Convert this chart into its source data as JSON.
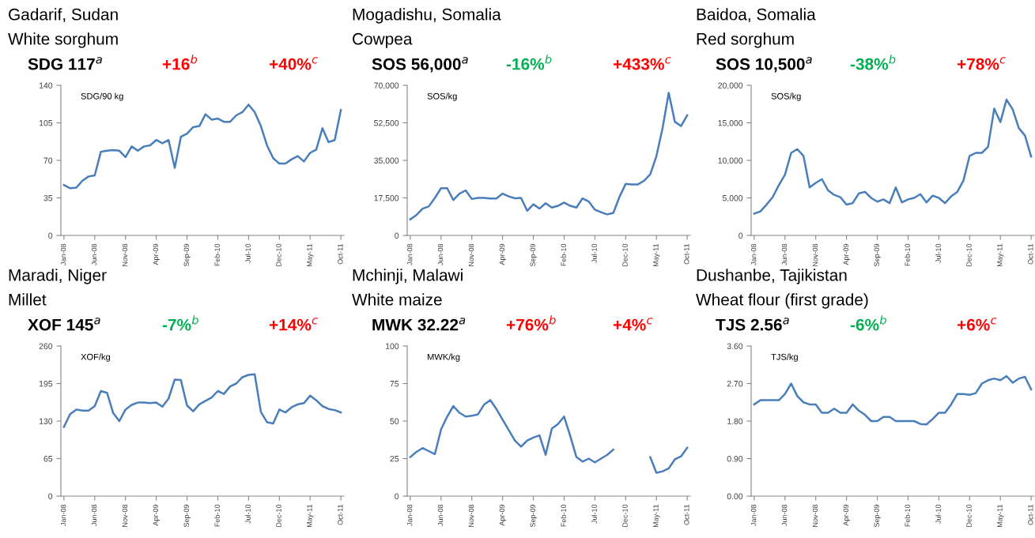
{
  "chart_data": [
    {
      "type": "line",
      "title": "Gadarif, Sudan",
      "subtitle": "White sorghum",
      "ylabel": "SDG/90 kg",
      "annotations": [
        "SDG 117$^{a}$",
        "+16$^{b}$",
        "+40%$^{c}$"
      ],
      "categories": [
        "Jan-08",
        null,
        null,
        null,
        null,
        "Jun-08",
        null,
        null,
        null,
        null,
        "Nov-08",
        null,
        null,
        null,
        null,
        "Apr-09",
        null,
        null,
        null,
        null,
        "Sep-09",
        null,
        null,
        null,
        null,
        "Feb-10",
        null,
        null,
        null,
        null,
        "Jul-10",
        null,
        null,
        null,
        null,
        "Dec-10",
        null,
        null,
        null,
        null,
        "May-11",
        null,
        null,
        null,
        null,
        "Oct-11"
      ],
      "series": [
        {
          "color": "#4a7ebb",
          "values": [
            47,
            44,
            44.5,
            51,
            55,
            56,
            78,
            79,
            79.5,
            79,
            73,
            83,
            79,
            83,
            84,
            89,
            86,
            89,
            63,
            92,
            95,
            101,
            102,
            113,
            108,
            109,
            106,
            106,
            112,
            115,
            122,
            115,
            102,
            84,
            72,
            67,
            67,
            71,
            74,
            69,
            77,
            80,
            100,
            87,
            89,
            117
          ]
        }
      ],
      "ylim": [
        0,
        140
      ],
      "yticks": [
        0,
        35,
        70,
        105,
        140
      ]
    },
    {
      "type": "line",
      "title": "Mogadishu, Somalia",
      "subtitle": "Cowpea",
      "ylabel": "SOS/kg",
      "annotations": [
        "SOS 56,000$^{a}$",
        "-16%$^{b}$",
        "+433%$^{c}$"
      ],
      "categories": [
        "Jan-08",
        null,
        null,
        null,
        null,
        "Jun-08",
        null,
        null,
        null,
        null,
        "Nov-08",
        null,
        null,
        null,
        null,
        "Apr-09",
        null,
        null,
        null,
        null,
        "Sep-09",
        null,
        null,
        null,
        null,
        "Feb-10",
        null,
        null,
        null,
        null,
        "Jul-10",
        null,
        null,
        null,
        null,
        "Dec-10",
        null,
        null,
        null,
        null,
        "May-11",
        null,
        null,
        null,
        null,
        "Oct-11"
      ],
      "series": [
        {
          "color": "#4a7ebb",
          "values": [
            7500,
            9500,
            12500,
            13500,
            17500,
            22000,
            22000,
            16500,
            19500,
            21000,
            17000,
            17500,
            17500,
            17200,
            17200,
            19500,
            18200,
            17300,
            17500,
            11500,
            14500,
            12500,
            15000,
            13000,
            13800,
            15300,
            13800,
            13000,
            17300,
            15800,
            12000,
            10800,
            9800,
            10500,
            18000,
            24000,
            23800,
            23800,
            25500,
            28500,
            37000,
            50000,
            66500,
            53000,
            51000,
            56000
          ]
        }
      ],
      "ylim": [
        0,
        70000
      ],
      "yticks": [
        0,
        {
          "value": 17500,
          "label": "17,500"
        },
        {
          "value": 35000,
          "label": "35,000"
        },
        {
          "value": 52500,
          "label": "52,500"
        },
        {
          "value": 70000,
          "label": "70,000"
        }
      ]
    },
    {
      "type": "line",
      "title": "Baidoa, Somalia",
      "subtitle": "Red sorghum",
      "ylabel": "SOS/kg",
      "annotations": [
        "SOS 10,500$^{a}$",
        "-38%$^{b}$",
        "+78%$^{c}$"
      ],
      "categories": [
        "Jan-08",
        null,
        null,
        null,
        null,
        "Jun-08",
        null,
        null,
        null,
        null,
        "Nov-08",
        null,
        null,
        null,
        null,
        "Apr-09",
        null,
        null,
        null,
        null,
        "Sep-09",
        null,
        null,
        null,
        null,
        "Feb-10",
        null,
        null,
        null,
        null,
        "Jul-10",
        null,
        null,
        null,
        null,
        "Dec-10",
        null,
        null,
        null,
        null,
        "May-11",
        null,
        null,
        null,
        null,
        "Oct-11"
      ],
      "series": [
        {
          "color": "#4a7ebb",
          "values": [
            2900,
            3200,
            4100,
            5100,
            6700,
            8100,
            11000,
            11500,
            10600,
            6400,
            7000,
            7500,
            6000,
            5400,
            5100,
            4100,
            4300,
            5600,
            5800,
            5000,
            4500,
            4800,
            4300,
            6400,
            4400,
            4800,
            5000,
            5500,
            4400,
            5300,
            5000,
            4300,
            5200,
            5800,
            7300,
            10600,
            11000,
            11000,
            11800,
            16900,
            15100,
            18100,
            16800,
            14300,
            13300,
            10500
          ]
        }
      ],
      "ylim": [
        0,
        20000
      ],
      "yticks": [
        0,
        {
          "value": 5000,
          "label": "5,000"
        },
        {
          "value": 10000,
          "label": "10,000"
        },
        {
          "value": 15000,
          "label": "15,000"
        },
        {
          "value": 20000,
          "label": "20,000"
        }
      ]
    },
    {
      "type": "line",
      "title": "Maradi, Niger",
      "subtitle": "Millet",
      "ylabel": "XOF/kg",
      "annotations": [
        "XOF 145$^{a}$",
        "-7%$^{b}$",
        "+14%$^{c}$"
      ],
      "categories": [
        "Jan-08",
        null,
        null,
        null,
        null,
        "Jun-08",
        null,
        null,
        null,
        null,
        "Nov-08",
        null,
        null,
        null,
        null,
        "Apr-09",
        null,
        null,
        null,
        null,
        "Sep-09",
        null,
        null,
        null,
        null,
        "Feb-10",
        null,
        null,
        null,
        null,
        "Jul-10",
        null,
        null,
        null,
        null,
        "Dec-10",
        null,
        null,
        null,
        null,
        "May-11",
        null,
        null,
        null,
        null,
        "Oct-11"
      ],
      "series": [
        {
          "color": "#4a7ebb",
          "values": [
            120,
            142,
            150,
            148,
            148,
            156,
            182,
            179,
            144,
            130,
            150,
            158,
            162,
            162,
            161,
            162,
            155,
            169,
            202,
            201,
            157,
            147,
            159,
            165,
            171,
            182,
            177,
            190,
            195,
            206,
            210,
            211,
            146,
            128,
            126,
            150,
            145,
            154,
            159,
            161,
            174,
            166,
            156,
            151,
            149,
            145
          ]
        }
      ],
      "ylim": [
        0,
        260
      ],
      "yticks": [
        0,
        65,
        130,
        195,
        260
      ]
    },
    {
      "type": "line",
      "title": "Mchinji, Malawi",
      "subtitle": "White maize",
      "ylabel": "MWK/kg",
      "annotations": [
        "MWK 32.22$^{a}$",
        "+76%$^{b}$",
        "+4%$^{c}$"
      ],
      "categories": [
        "Jan-08",
        null,
        null,
        null,
        null,
        "Jun-08",
        null,
        null,
        null,
        null,
        "Nov-08",
        null,
        null,
        null,
        null,
        "Apr-09",
        null,
        null,
        null,
        null,
        "Sep-09",
        null,
        null,
        null,
        null,
        "Feb-10",
        null,
        null,
        null,
        null,
        "Jul-10",
        null,
        null,
        null,
        null,
        "Dec-10",
        null,
        null,
        null,
        null,
        "May-11",
        null,
        null,
        null,
        null,
        "Oct-11"
      ],
      "series": [
        {
          "color": "#4a7ebb",
          "values": [
            26,
            29.5,
            32,
            30,
            28,
            44.5,
            53,
            60,
            55.5,
            53,
            53.5,
            54.5,
            61,
            64,
            58,
            51,
            44,
            37,
            33,
            37,
            39,
            40.5,
            27.5,
            45,
            48,
            53,
            40,
            26,
            23,
            25,
            22.5,
            25,
            27.5,
            31,
            null,
            null,
            null,
            null,
            null,
            26,
            15.5,
            16.5,
            18.5,
            24.5,
            26.5,
            32.2
          ]
        }
      ],
      "ylim": [
        0,
        100
      ],
      "yticks": [
        0,
        25,
        50,
        75,
        100
      ]
    },
    {
      "type": "line",
      "title": "Dushanbe, Tajikistan",
      "subtitle": "Wheat flour (first grade)",
      "ylabel": "TJS/kg",
      "annotations": [
        "TJS 2.56$^{a}$",
        "-6%$^{b}$",
        "+6%$^{c}$"
      ],
      "categories": [
        "Jan-08",
        null,
        null,
        null,
        null,
        "Jun-08",
        null,
        null,
        null,
        null,
        "Nov-08",
        null,
        null,
        null,
        null,
        "Apr-09",
        null,
        null,
        null,
        null,
        "Sep-09",
        null,
        null,
        null,
        null,
        "Feb-10",
        null,
        null,
        null,
        null,
        "Jul-10",
        null,
        null,
        null,
        null,
        "Dec-10",
        null,
        null,
        null,
        null,
        "May-11",
        null,
        null,
        null,
        null,
        "Oct-11"
      ],
      "series": [
        {
          "color": "#4a7ebb",
          "values": [
            2.2,
            2.3,
            2.3,
            2.3,
            2.3,
            2.45,
            2.7,
            2.4,
            2.25,
            2.2,
            2.2,
            2.0,
            2.0,
            2.1,
            2.0,
            2.0,
            2.2,
            2.05,
            1.95,
            1.8,
            1.8,
            1.9,
            1.9,
            1.8,
            1.8,
            1.8,
            1.8,
            1.73,
            1.72,
            1.85,
            2.0,
            2.0,
            2.2,
            2.45,
            2.45,
            2.43,
            2.47,
            2.7,
            2.78,
            2.82,
            2.78,
            2.88,
            2.72,
            2.82,
            2.86,
            2.56
          ]
        }
      ],
      "ylim": [
        0,
        3.6
      ],
      "yticks": [
        {
          "value": 0,
          "label": "0.00"
        },
        {
          "value": 0.9,
          "label": "0.90"
        },
        {
          "value": 1.8,
          "label": "1.80"
        },
        {
          "value": 2.7,
          "label": "2.70"
        },
        {
          "value": 3.6,
          "label": "3.60"
        }
      ]
    }
  ]
}
